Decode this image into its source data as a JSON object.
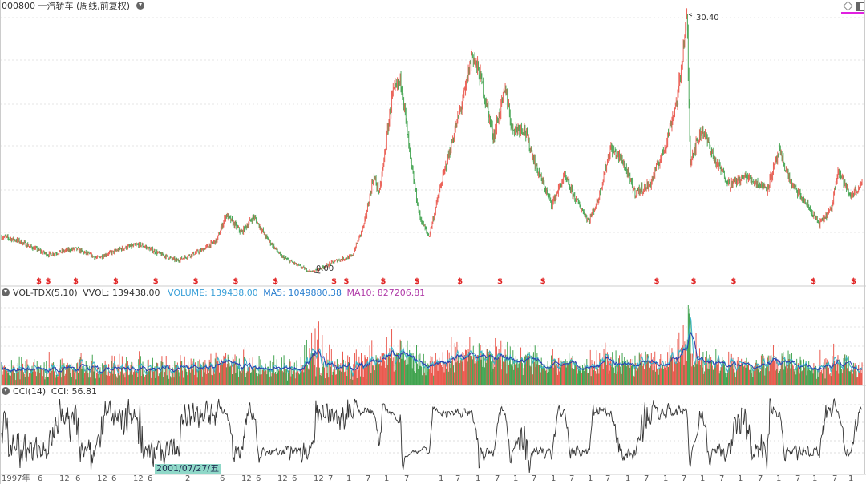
{
  "header": {
    "title": "000800 一汽轿车 (周线,前复权)",
    "settings_icon": "chevron-down-circle-icon"
  },
  "toolbar": {
    "icons": [
      "diamond-icon",
      "panel-toggle-icon"
    ],
    "accent": "#e020e0"
  },
  "volume_panel": {
    "indicator": "VOL-TDX(5,10)",
    "vvol": "VVOL: 139438.00",
    "volume": "VOLUME: 139438.00",
    "ma5": "MA5: 1049880.38",
    "ma10": "MA10: 827206.81",
    "colors": {
      "volume": "#3ba0d8",
      "ma5": "#2a6fd0",
      "ma10": "#b03aa8"
    }
  },
  "cci_panel": {
    "indicator": "CCI(14)",
    "value": "CCI: 56.81"
  },
  "x_axis": {
    "labels": [
      "1997年",
      "6",
      "12",
      "6",
      "12",
      "6",
      "12",
      "6",
      "2",
      "6",
      "12",
      "6",
      "12",
      "6",
      "12",
      "7",
      "1",
      "7",
      "1",
      "7",
      "1",
      "7",
      "1",
      "7",
      "1",
      "7",
      "1",
      "7",
      "1",
      "7",
      "1",
      "7",
      "1",
      "7",
      "1",
      "7",
      "1",
      "7",
      "1",
      "7",
      "1",
      "7",
      "1",
      "7"
    ],
    "crosshair_date": "2001/07/27/五"
  },
  "dividend_marker": "$",
  "colors": {
    "up": "#e8483c",
    "down": "#2f9a3e",
    "background": "#ffffff"
  },
  "chart_data": {
    "type": "candlestick",
    "title": "000800 一汽轿车 (周线,前复权)",
    "period": "weekly",
    "annotations": {
      "max": "30.40",
      "min": "0.00"
    },
    "grid": true,
    "approx_close_path": [
      {
        "t": "1997-01",
        "p": 4.2
      },
      {
        "t": "1997-06",
        "p": 3.8
      },
      {
        "t": "1998-04",
        "p": 2.1
      },
      {
        "t": "1999-01",
        "p": 2.8
      },
      {
        "t": "1999-08",
        "p": 1.7
      },
      {
        "t": "2000-04",
        "p": 2.8
      },
      {
        "t": "2000-10",
        "p": 3.3
      },
      {
        "t": "2001-05",
        "p": 2.1
      },
      {
        "t": "2001-10",
        "p": 1.4
      },
      {
        "t": "2002-06",
        "p": 2.6
      },
      {
        "t": "2002-11",
        "p": 3.8
      },
      {
        "t": "2003-02",
        "p": 6.8
      },
      {
        "t": "2003-07",
        "p": 4.7
      },
      {
        "t": "2003-11",
        "p": 6.6
      },
      {
        "t": "2004-03",
        "p": 4.2
      },
      {
        "t": "2004-08",
        "p": 1.9
      },
      {
        "t": "2005-01",
        "p": 0.9
      },
      {
        "t": "2005-06",
        "p": 0.0
      },
      {
        "t": "2006-02",
        "p": 1.4
      },
      {
        "t": "2006-07",
        "p": 1.9
      },
      {
        "t": "2006-11",
        "p": 5.7
      },
      {
        "t": "2007-02",
        "p": 11.3
      },
      {
        "t": "2007-04",
        "p": 9.4
      },
      {
        "t": "2007-06",
        "p": 15.0
      },
      {
        "t": "2007-08",
        "p": 20.8
      },
      {
        "t": "2007-11",
        "p": 22.7
      },
      {
        "t": "2008-02",
        "p": 13.2
      },
      {
        "t": "2008-05",
        "p": 6.6
      },
      {
        "t": "2008-08",
        "p": 4.2
      },
      {
        "t": "2008-12",
        "p": 10.4
      },
      {
        "t": "2009-04",
        "p": 16.0
      },
      {
        "t": "2009-08",
        "p": 21.7
      },
      {
        "t": "2009-10",
        "p": 25.9
      },
      {
        "t": "2010-01",
        "p": 22.7
      },
      {
        "t": "2010-05",
        "p": 16.0
      },
      {
        "t": "2010-09",
        "p": 21.7
      },
      {
        "t": "2010-11",
        "p": 17.0
      },
      {
        "t": "2011-03",
        "p": 17.0
      },
      {
        "t": "2011-07",
        "p": 12.3
      },
      {
        "t": "2011-12",
        "p": 8.0
      },
      {
        "t": "2012-04",
        "p": 11.3
      },
      {
        "t": "2012-08",
        "p": 8.5
      },
      {
        "t": "2012-12",
        "p": 6.1
      },
      {
        "t": "2013-03",
        "p": 8.5
      },
      {
        "t": "2013-07",
        "p": 14.6
      },
      {
        "t": "2013-11",
        "p": 13.2
      },
      {
        "t": "2014-03",
        "p": 9.4
      },
      {
        "t": "2014-08",
        "p": 10.4
      },
      {
        "t": "2015-01",
        "p": 15.0
      },
      {
        "t": "2015-05",
        "p": 20.8
      },
      {
        "t": "2015-08",
        "p": 30.4
      },
      {
        "t": "2015-09",
        "p": 13.2
      },
      {
        "t": "2016-01",
        "p": 17.0
      },
      {
        "t": "2016-05",
        "p": 13.2
      },
      {
        "t": "2016-10",
        "p": 10.4
      },
      {
        "t": "2017-03",
        "p": 11.3
      },
      {
        "t": "2017-10",
        "p": 9.9
      },
      {
        "t": "2018-02",
        "p": 14.2
      },
      {
        "t": "2018-06",
        "p": 10.4
      },
      {
        "t": "2018-11",
        "p": 8.0
      },
      {
        "t": "2019-03",
        "p": 5.7
      },
      {
        "t": "2019-07",
        "p": 7.5
      },
      {
        "t": "2019-09",
        "p": 12.3
      },
      {
        "t": "2020-01",
        "p": 9.0
      },
      {
        "t": "2020-05",
        "p": 10.4
      }
    ],
    "dividend_dates_approx": [
      "1998-01",
      "1998-04",
      "1999-01",
      "2000-02",
      "2001-03",
      "2002-04",
      "2003-05",
      "2004-06",
      "2006-01",
      "2006-05",
      "2007-05",
      "2008-04",
      "2009-06",
      "2010-07",
      "2011-09",
      "2014-10",
      "2015-10",
      "2016-11",
      "2019-01",
      "2020-02"
    ]
  }
}
